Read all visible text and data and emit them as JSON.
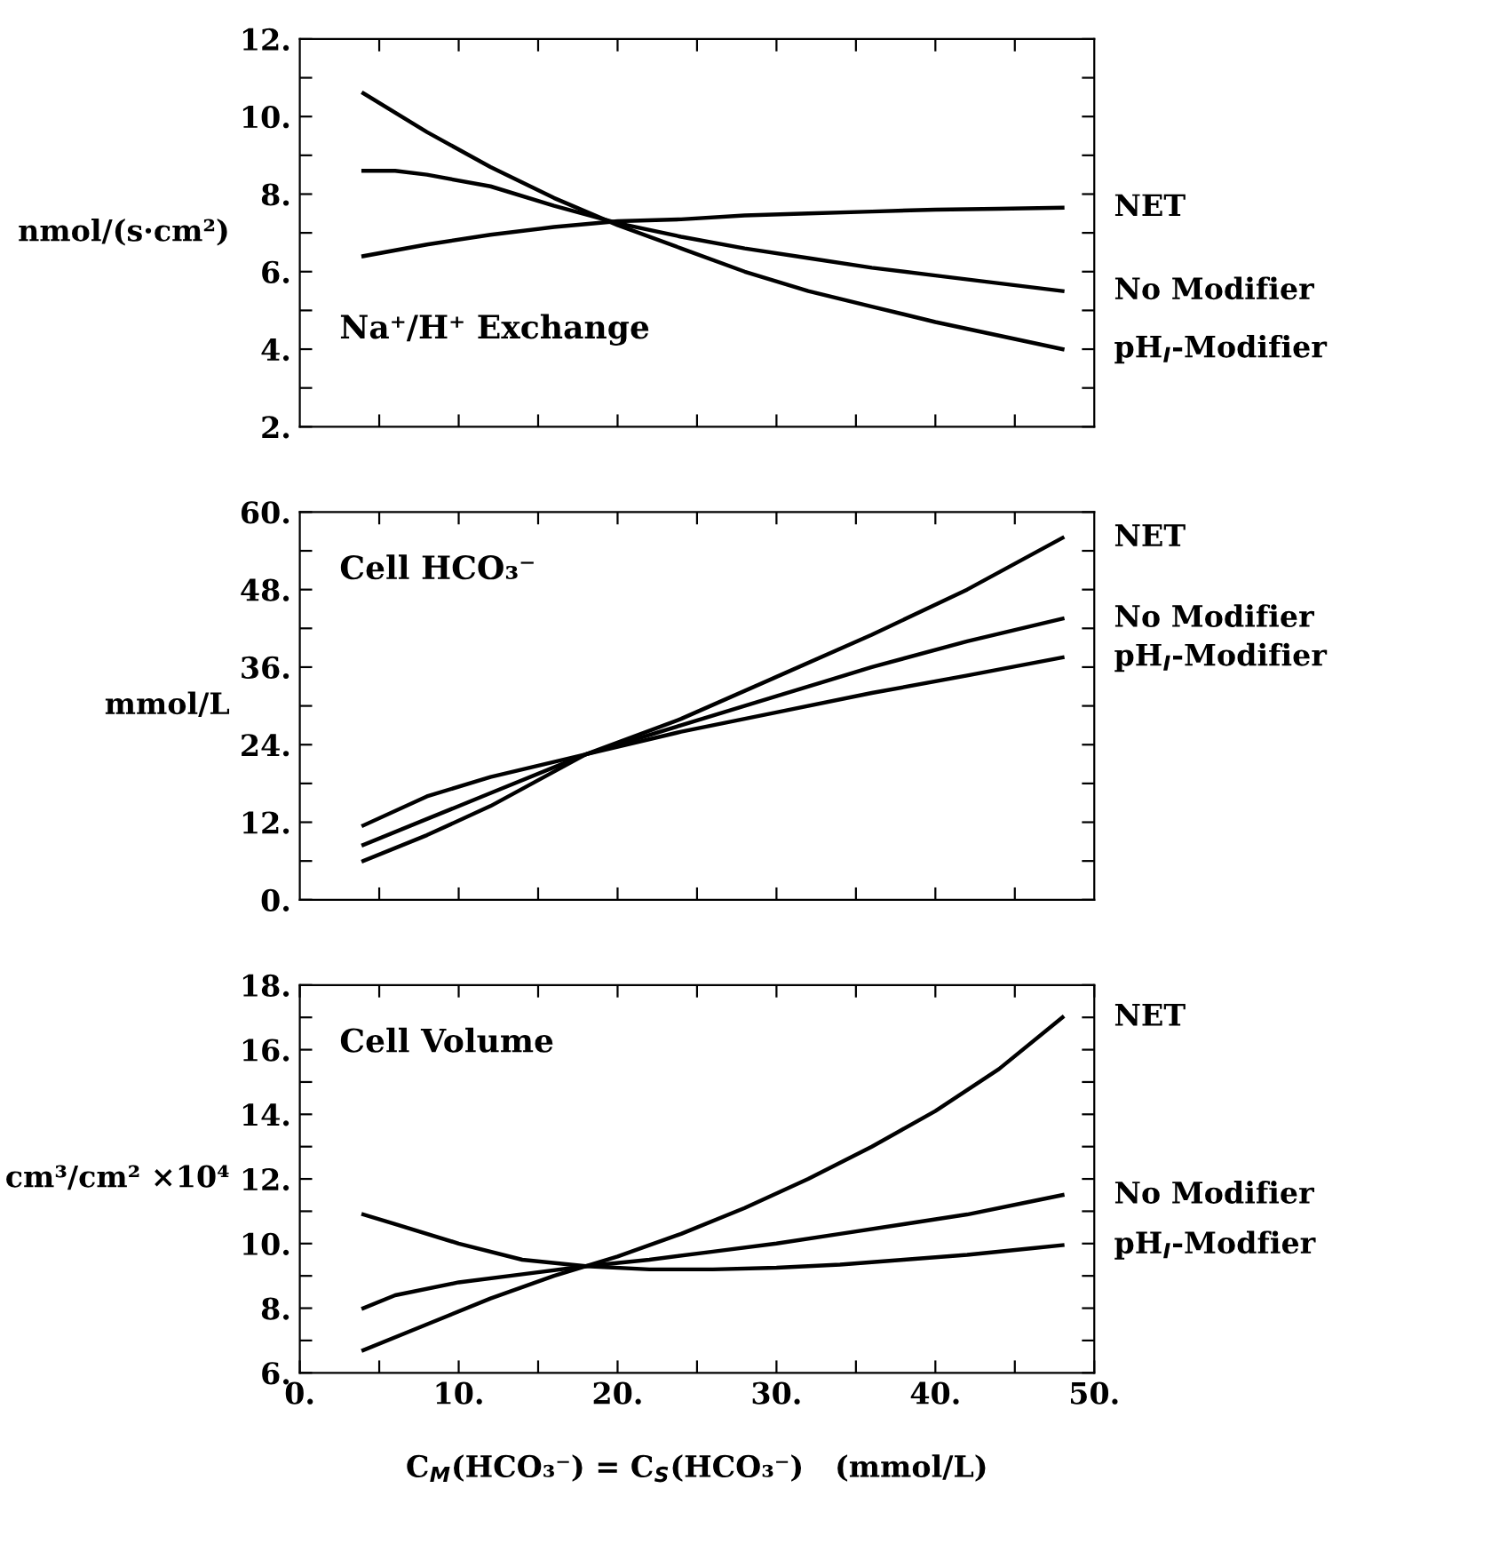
{
  "chart_data": [
    {
      "type": "line",
      "ylabel": "nmol/(s·cm²)",
      "annotations": [
        "Na⁺/H⁺ Exchange"
      ],
      "tick_labels": "y",
      "grid": false,
      "legend": "right",
      "line_style": "solid",
      "marker": "none",
      "xlim": [
        0,
        50
      ],
      "xticks": [
        {
          "value": 5,
          "label": null
        },
        {
          "value": 10,
          "label": null
        },
        {
          "value": 15,
          "label": null
        },
        {
          "value": 20,
          "label": null
        },
        {
          "value": 25,
          "label": null
        },
        {
          "value": 30,
          "label": null
        },
        {
          "value": 35,
          "label": null
        },
        {
          "value": 40,
          "label": null
        },
        {
          "value": 45,
          "label": null
        }
      ],
      "ylim": [
        2,
        12
      ],
      "yticks": [
        {
          "value": 2,
          "label": "2."
        },
        {
          "value": 3,
          "label": null
        },
        {
          "value": 4,
          "label": "4."
        },
        {
          "value": 5,
          "label": null
        },
        {
          "value": 6,
          "label": "6."
        },
        {
          "value": 7,
          "label": null
        },
        {
          "value": 8,
          "label": "8."
        },
        {
          "value": 9,
          "label": null
        },
        {
          "value": 10,
          "label": "10."
        },
        {
          "value": 11,
          "label": null
        },
        {
          "value": 12,
          "label": "12."
        }
      ],
      "series": [
        {
          "name": "NET",
          "color": "#000000",
          "x": [
            4,
            8,
            12,
            16,
            20,
            24,
            28,
            32,
            36,
            40,
            44,
            48
          ],
          "values": [
            6.4,
            6.7,
            6.95,
            7.15,
            7.3,
            7.35,
            7.45,
            7.5,
            7.55,
            7.6,
            7.62,
            7.65
          ]
        },
        {
          "name": "No Modifier",
          "color": "#000000",
          "x": [
            4,
            6,
            8,
            12,
            16,
            20,
            24,
            28,
            32,
            36,
            40,
            44,
            48
          ],
          "values": [
            8.6,
            8.6,
            8.5,
            8.2,
            7.7,
            7.25,
            6.9,
            6.6,
            6.35,
            6.1,
            5.9,
            5.7,
            5.5
          ]
        },
        {
          "name": "pH$_{I}$-Modifier",
          "color": "#000000",
          "x": [
            4,
            8,
            12,
            16,
            20,
            24,
            28,
            32,
            36,
            40,
            44,
            48
          ],
          "values": [
            10.6,
            9.6,
            8.7,
            7.9,
            7.2,
            6.6,
            6.0,
            5.5,
            5.1,
            4.7,
            4.35,
            4.0
          ]
        }
      ]
    },
    {
      "type": "line",
      "ylabel": "mmol/L",
      "annotations": [
        "Cell HCO₃⁻"
      ],
      "tick_labels": "y",
      "grid": false,
      "legend": "right",
      "line_style": "solid",
      "marker": "none",
      "xlim": [
        0,
        50
      ],
      "xticks": [
        {
          "value": 5,
          "label": null
        },
        {
          "value": 10,
          "label": null
        },
        {
          "value": 15,
          "label": null
        },
        {
          "value": 20,
          "label": null
        },
        {
          "value": 25,
          "label": null
        },
        {
          "value": 30,
          "label": null
        },
        {
          "value": 35,
          "label": null
        },
        {
          "value": 40,
          "label": null
        },
        {
          "value": 45,
          "label": null
        }
      ],
      "ylim": [
        0,
        60
      ],
      "yticks": [
        {
          "value": 0,
          "label": "0."
        },
        {
          "value": 6,
          "label": null
        },
        {
          "value": 12,
          "label": "12."
        },
        {
          "value": 18,
          "label": null
        },
        {
          "value": 24,
          "label": "24."
        },
        {
          "value": 30,
          "label": null
        },
        {
          "value": 36,
          "label": "36."
        },
        {
          "value": 42,
          "label": null
        },
        {
          "value": 48,
          "label": "48."
        },
        {
          "value": 54,
          "label": null
        },
        {
          "value": 60,
          "label": "60."
        }
      ],
      "series": [
        {
          "name": "NET",
          "color": "#000000",
          "x": [
            4,
            8,
            12,
            18,
            24,
            30,
            36,
            42,
            48
          ],
          "values": [
            6,
            10,
            14.5,
            22.5,
            28,
            34.5,
            41,
            48,
            56
          ]
        },
        {
          "name": "No Modifier",
          "color": "#000000",
          "x": [
            4,
            8,
            12,
            18,
            24,
            30,
            36,
            42,
            48
          ],
          "values": [
            8.5,
            12.5,
            16.5,
            22.5,
            27,
            31.5,
            36,
            40,
            43.5
          ]
        },
        {
          "name": "pH$_{I}$-Modifier",
          "color": "#000000",
          "x": [
            4,
            8,
            12,
            18,
            24,
            30,
            36,
            42,
            48
          ],
          "values": [
            11.5,
            16,
            19,
            22.5,
            26,
            29,
            32,
            34.7,
            37.5
          ]
        }
      ]
    },
    {
      "type": "line",
      "ylabel": "cm³/cm² ×10⁴",
      "xlabel": "C$_{M}$(HCO₃⁻) = C$_{S}$(HCO₃⁻)   (mmol/L)",
      "annotations": [
        "Cell Volume"
      ],
      "grid": false,
      "legend": "right",
      "line_style": "solid",
      "marker": "none",
      "xlim": [
        0,
        50
      ],
      "xticks": [
        {
          "value": 0,
          "label": "0."
        },
        {
          "value": 5,
          "label": null
        },
        {
          "value": 10,
          "label": "10."
        },
        {
          "value": 15,
          "label": null
        },
        {
          "value": 20,
          "label": "20."
        },
        {
          "value": 25,
          "label": null
        },
        {
          "value": 30,
          "label": "30."
        },
        {
          "value": 35,
          "label": null
        },
        {
          "value": 40,
          "label": "40."
        },
        {
          "value": 45,
          "label": null
        },
        {
          "value": 50,
          "label": "50."
        }
      ],
      "ylim": [
        6,
        18
      ],
      "yticks": [
        {
          "value": 6,
          "label": "6."
        },
        {
          "value": 7,
          "label": null
        },
        {
          "value": 8,
          "label": "8."
        },
        {
          "value": 9,
          "label": null
        },
        {
          "value": 10,
          "label": "10."
        },
        {
          "value": 11,
          "label": null
        },
        {
          "value": 12,
          "label": "12."
        },
        {
          "value": 13,
          "label": null
        },
        {
          "value": 14,
          "label": "14."
        },
        {
          "value": 15,
          "label": null
        },
        {
          "value": 16,
          "label": "16."
        },
        {
          "value": 17,
          "label": null
        },
        {
          "value": 18,
          "label": "18."
        }
      ],
      "series": [
        {
          "name": "NET",
          "color": "#000000",
          "x": [
            4,
            8,
            12,
            16,
            20,
            24,
            28,
            32,
            36,
            40,
            44,
            48
          ],
          "values": [
            6.7,
            7.5,
            8.3,
            9.0,
            9.6,
            10.3,
            11.1,
            12.0,
            13.0,
            14.1,
            15.4,
            17.0
          ]
        },
        {
          "name": "No Modifier",
          "color": "#000000",
          "x": [
            4,
            6,
            10,
            14,
            18,
            22,
            26,
            30,
            34,
            38,
            42,
            46,
            48
          ],
          "values": [
            8.0,
            8.4,
            8.8,
            9.05,
            9.3,
            9.5,
            9.75,
            10.0,
            10.3,
            10.6,
            10.9,
            11.3,
            11.5
          ]
        },
        {
          "name": "pH$_{I}$-Modfier",
          "color": "#000000",
          "x": [
            4,
            6,
            10,
            14,
            18,
            22,
            26,
            30,
            34,
            38,
            42,
            46,
            48
          ],
          "values": [
            10.9,
            10.6,
            10.0,
            9.5,
            9.3,
            9.2,
            9.2,
            9.25,
            9.35,
            9.5,
            9.65,
            9.85,
            9.95
          ]
        }
      ]
    }
  ]
}
